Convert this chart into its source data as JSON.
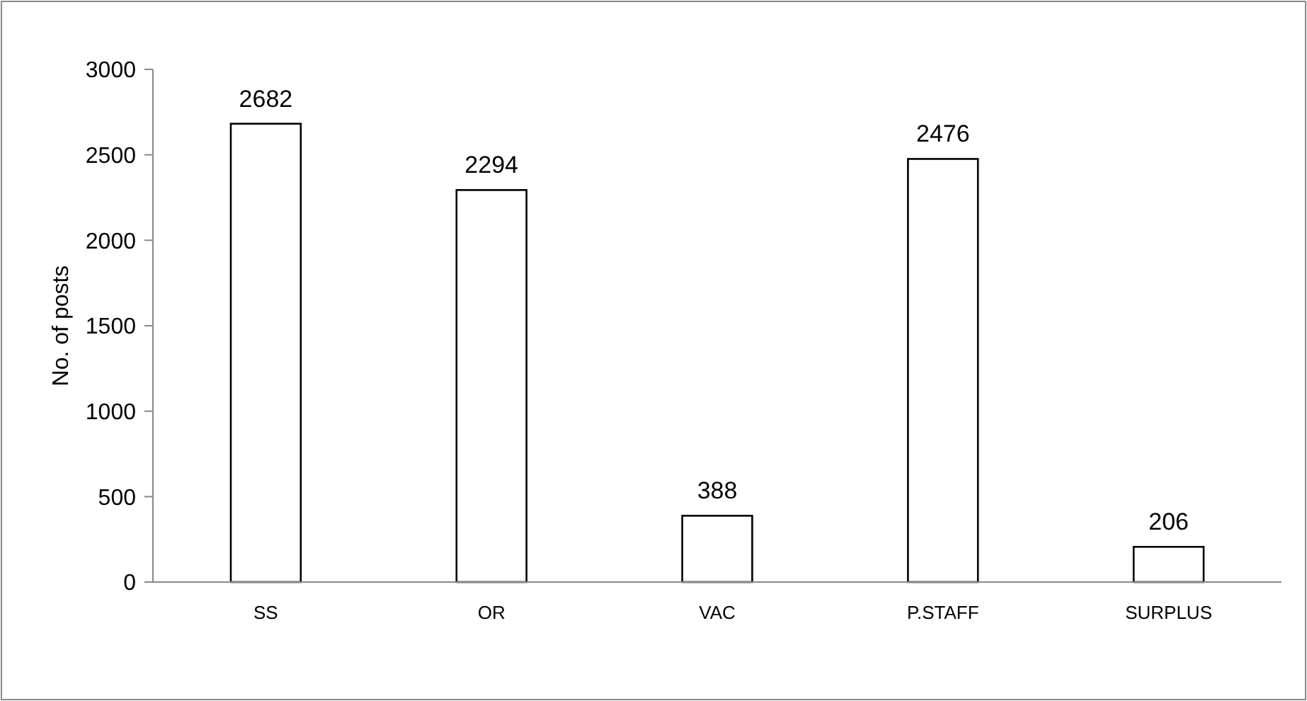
{
  "chart_data": {
    "type": "bar",
    "ylabel": "No. of posts",
    "categories": [
      "SS",
      "OR",
      "VAC",
      "P.STAFF",
      "SURPLUS"
    ],
    "values": [
      2682,
      2294,
      388,
      2476,
      206
    ],
    "color": "#ffffff",
    "ylim": [
      0,
      3000
    ],
    "yticks": [
      0,
      500,
      1000,
      1500,
      2000,
      2500,
      3000
    ],
    "grid": false,
    "data_labels": true
  }
}
